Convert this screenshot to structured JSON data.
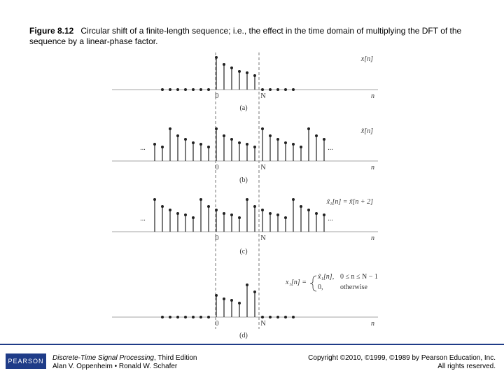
{
  "header": {
    "figure_label": "Figure 8.12",
    "title": "Circular shift of a finite-length sequence; i.e., the effect in the time domain of multiplying the DFT of the sequence by a linear-phase factor."
  },
  "figure": {
    "axis_origin": "0",
    "axis_period": "N",
    "axis_variable": "n",
    "ellipsis": "...",
    "panels": [
      {
        "caption": "(a)",
        "label": "x[n]"
      },
      {
        "caption": "(b)",
        "label": "x̃[n]"
      },
      {
        "caption": "(c)",
        "label": "x̃₁[n] = x̃[n + 2]"
      },
      {
        "caption": "(d)",
        "label": "x₁[n] =",
        "cases": [
          "x̃₁[n],",
          "0 ≤ n ≤ N − 1",
          "0,",
          "otherwise"
        ]
      }
    ]
  },
  "footer": {
    "logo": "PEARSON",
    "book_title": "Discrete-Time Signal Processing",
    "edition": ", Third Edition",
    "authors": "Alan V. Oppenheim • Ronald W. Schafer",
    "copyright": "Copyright ©2010, ©1999, ©1989 by Pearson Education, Inc.",
    "rights": "All rights reserved."
  }
}
